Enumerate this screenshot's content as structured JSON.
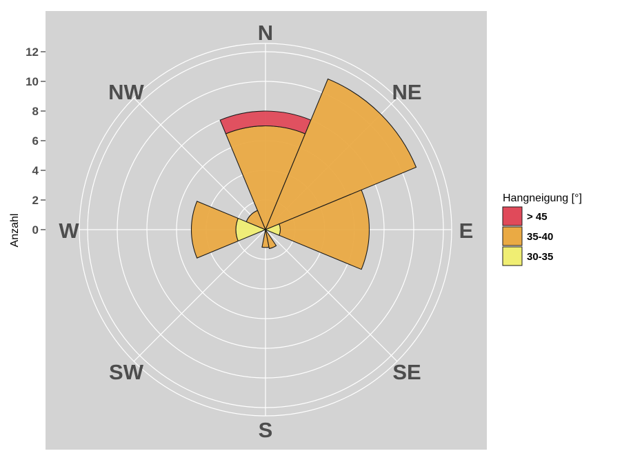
{
  "chart_data": {
    "type": "stacked-polar-bar",
    "ylabel": "Anzahl",
    "ylim": [
      0,
      12.5
    ],
    "y_ticks": [
      "0",
      "2",
      "4",
      "6",
      "8",
      "10",
      "12"
    ],
    "directions": [
      "N",
      "NE",
      "E",
      "SE",
      "S",
      "SW",
      "W",
      "NW"
    ],
    "sectors": [
      {
        "center_deg": 0,
        "width_deg": 45
      },
      {
        "center_deg": 45,
        "width_deg": 45
      },
      {
        "center_deg": 90,
        "width_deg": 45
      },
      {
        "center_deg": 157.5,
        "width_deg": 22.5
      },
      {
        "center_deg": 180,
        "width_deg": 22.5
      },
      {
        "center_deg": 225,
        "width_deg": 45
      },
      {
        "center_deg": 270,
        "width_deg": 45
      },
      {
        "center_deg": 315,
        "width_deg": 45
      }
    ],
    "legend": {
      "title": "Hangneigung [°]",
      "position": "right"
    },
    "series": [
      {
        "name": "30-35",
        "color": "#f0ee73",
        "values": [
          0,
          0,
          1,
          0,
          0,
          0,
          2,
          0
        ]
      },
      {
        "name": "35-40",
        "color": "#eaaa44",
        "values": [
          7,
          11,
          6,
          1.3,
          1.2,
          0,
          3,
          1.4
        ]
      },
      {
        "name": "> 45",
        "color": "#e04a5a",
        "values": [
          1,
          0,
          0,
          0,
          0,
          0,
          0,
          0
        ]
      }
    ],
    "legend_order": [
      "> 45",
      "35-40",
      "30-35"
    ],
    "panel_background": "#d3d3d3",
    "grid_color": "#ffffff"
  }
}
